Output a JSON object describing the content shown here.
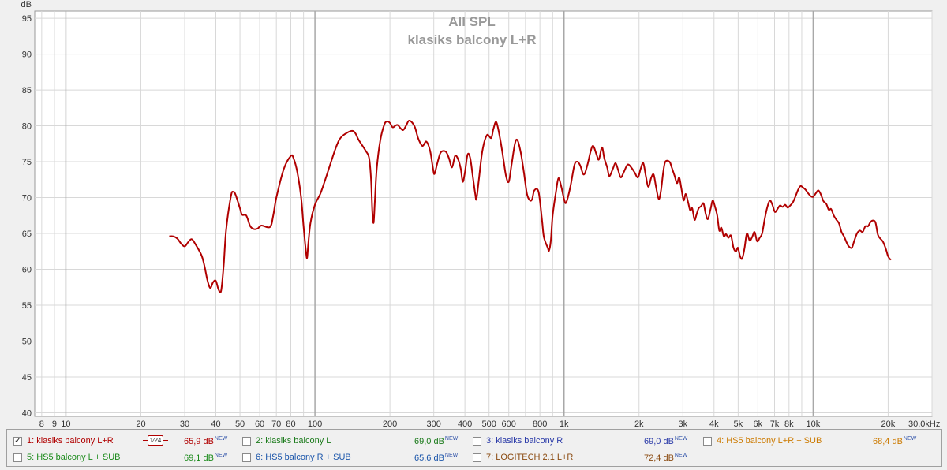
{
  "chart_data": {
    "type": "line",
    "title": "All SPL",
    "subtitle": "klasiks balcony L+R",
    "ylabel": "dB",
    "xunit": "Hz",
    "xscale": "log",
    "xlim": [
      7.5,
      30000
    ],
    "ylim": [
      39.5,
      96
    ],
    "grid": true,
    "yticks": [
      40,
      45,
      50,
      55,
      60,
      65,
      70,
      75,
      80,
      85,
      90,
      95
    ],
    "xticks": [
      {
        "v": 8,
        "label": "8"
      },
      {
        "v": 9,
        "label": "9"
      },
      {
        "v": 10,
        "label": "10"
      },
      {
        "v": 20,
        "label": "20"
      },
      {
        "v": 30,
        "label": "30"
      },
      {
        "v": 40,
        "label": "40"
      },
      {
        "v": 50,
        "label": "50"
      },
      {
        "v": 60,
        "label": "60"
      },
      {
        "v": 70,
        "label": "70"
      },
      {
        "v": 80,
        "label": "80"
      },
      {
        "v": 100,
        "label": "100"
      },
      {
        "v": 200,
        "label": "200"
      },
      {
        "v": 300,
        "label": "300"
      },
      {
        "v": 400,
        "label": "400"
      },
      {
        "v": 500,
        "label": "500"
      },
      {
        "v": 600,
        "label": "600"
      },
      {
        "v": 800,
        "label": "800"
      },
      {
        "v": 1000,
        "label": "1k"
      },
      {
        "v": 2000,
        "label": "2k"
      },
      {
        "v": 3000,
        "label": "3k"
      },
      {
        "v": 4000,
        "label": "4k"
      },
      {
        "v": 5000,
        "label": "5k"
      },
      {
        "v": 6000,
        "label": "6k"
      },
      {
        "v": 7000,
        "label": "7k"
      },
      {
        "v": 8000,
        "label": "8k"
      },
      {
        "v": 10000,
        "label": "10k"
      },
      {
        "v": 20000,
        "label": "20k"
      },
      {
        "v": 30000,
        "label": "30,0kHz"
      }
    ],
    "series": [
      {
        "name": "1: klasiks balcony L+R",
        "color": "#b00000",
        "points": [
          [
            26,
            64.6
          ],
          [
            27,
            64.6
          ],
          [
            28,
            64.3
          ],
          [
            29,
            63.6
          ],
          [
            30,
            63.2
          ],
          [
            31,
            63.8
          ],
          [
            32,
            64.2
          ],
          [
            33,
            63.6
          ],
          [
            35,
            62.0
          ],
          [
            36,
            60.5
          ],
          [
            37,
            58.5
          ],
          [
            38,
            57.4
          ],
          [
            39,
            58.2
          ],
          [
            40,
            58.4
          ],
          [
            41,
            57.2
          ],
          [
            42,
            57.0
          ],
          [
            43,
            60.5
          ],
          [
            44,
            65.5
          ],
          [
            46,
            70.2
          ],
          [
            47,
            70.8
          ],
          [
            48,
            70.4
          ],
          [
            50,
            68.5
          ],
          [
            51,
            67.6
          ],
          [
            53,
            67.5
          ],
          [
            55,
            66.0
          ],
          [
            57,
            65.6
          ],
          [
            59,
            65.7
          ],
          [
            61,
            66.1
          ],
          [
            66,
            65.9
          ],
          [
            68,
            67.5
          ],
          [
            70,
            70.0
          ],
          [
            75,
            74.0
          ],
          [
            80,
            75.8
          ],
          [
            82,
            75.5
          ],
          [
            85,
            73.5
          ],
          [
            88,
            70.0
          ],
          [
            90,
            66.0
          ],
          [
            92,
            62.5
          ],
          [
            93,
            61.6
          ],
          [
            94,
            63.5
          ],
          [
            96,
            66.5
          ],
          [
            100,
            69.0
          ],
          [
            105,
            70.5
          ],
          [
            110,
            72.5
          ],
          [
            120,
            76.5
          ],
          [
            125,
            78.0
          ],
          [
            130,
            78.7
          ],
          [
            140,
            79.3
          ],
          [
            145,
            79.0
          ],
          [
            150,
            78.0
          ],
          [
            160,
            76.5
          ],
          [
            165,
            75.5
          ],
          [
            168,
            72.5
          ],
          [
            170,
            68.0
          ],
          [
            172,
            66.5
          ],
          [
            174,
            69.5
          ],
          [
            177,
            74.0
          ],
          [
            183,
            78.0
          ],
          [
            190,
            80.2
          ],
          [
            195,
            80.6
          ],
          [
            200,
            80.4
          ],
          [
            205,
            79.8
          ],
          [
            210,
            80.0
          ],
          [
            215,
            80.1
          ],
          [
            225,
            79.4
          ],
          [
            232,
            80.0
          ],
          [
            238,
            80.7
          ],
          [
            245,
            80.5
          ],
          [
            252,
            79.8
          ],
          [
            260,
            78.2
          ],
          [
            270,
            77.2
          ],
          [
            280,
            77.8
          ],
          [
            290,
            76.5
          ],
          [
            298,
            74.0
          ],
          [
            302,
            73.3
          ],
          [
            310,
            74.8
          ],
          [
            320,
            76.3
          ],
          [
            335,
            76.4
          ],
          [
            345,
            75.5
          ],
          [
            355,
            74.2
          ],
          [
            365,
            75.8
          ],
          [
            375,
            75.4
          ],
          [
            385,
            74.0
          ],
          [
            392,
            72.2
          ],
          [
            400,
            73.5
          ],
          [
            410,
            76.0
          ],
          [
            420,
            75.5
          ],
          [
            430,
            73.0
          ],
          [
            440,
            70.5
          ],
          [
            445,
            69.8
          ],
          [
            455,
            72.5
          ],
          [
            470,
            76.5
          ],
          [
            490,
            78.7
          ],
          [
            510,
            78.3
          ],
          [
            520,
            79.5
          ],
          [
            535,
            80.5
          ],
          [
            555,
            78.0
          ],
          [
            570,
            75.5
          ],
          [
            585,
            73.0
          ],
          [
            600,
            72.2
          ],
          [
            615,
            74.5
          ],
          [
            635,
            77.5
          ],
          [
            650,
            78.0
          ],
          [
            670,
            76.3
          ],
          [
            690,
            73.5
          ],
          [
            710,
            70.5
          ],
          [
            730,
            69.6
          ],
          [
            745,
            69.8
          ],
          [
            760,
            71.0
          ],
          [
            790,
            70.8
          ],
          [
            815,
            67.0
          ],
          [
            830,
            64.5
          ],
          [
            860,
            63.0
          ],
          [
            870,
            62.6
          ],
          [
            885,
            64.0
          ],
          [
            900,
            67.5
          ],
          [
            930,
            71.0
          ],
          [
            950,
            72.7
          ],
          [
            975,
            71.5
          ],
          [
            1000,
            69.8
          ],
          [
            1020,
            69.3
          ],
          [
            1060,
            71.5
          ],
          [
            1100,
            74.5
          ],
          [
            1130,
            75.0
          ],
          [
            1160,
            74.5
          ],
          [
            1200,
            73.2
          ],
          [
            1240,
            74.5
          ],
          [
            1280,
            76.5
          ],
          [
            1310,
            77.2
          ],
          [
            1350,
            76.0
          ],
          [
            1380,
            75.3
          ],
          [
            1420,
            77.0
          ],
          [
            1450,
            75.5
          ],
          [
            1490,
            74.2
          ],
          [
            1520,
            73.0
          ],
          [
            1570,
            74.0
          ],
          [
            1610,
            74.8
          ],
          [
            1650,
            73.8
          ],
          [
            1690,
            72.8
          ],
          [
            1740,
            73.6
          ],
          [
            1800,
            74.6
          ],
          [
            1860,
            74.2
          ],
          [
            1920,
            73.5
          ],
          [
            1980,
            72.8
          ],
          [
            2030,
            74.0
          ],
          [
            2080,
            74.8
          ],
          [
            2130,
            73.0
          ],
          [
            2180,
            71.5
          ],
          [
            2240,
            72.8
          ],
          [
            2290,
            73.2
          ],
          [
            2340,
            71.5
          ],
          [
            2400,
            69.8
          ],
          [
            2450,
            71.0
          ],
          [
            2500,
            73.5
          ],
          [
            2550,
            75.0
          ],
          [
            2650,
            75.0
          ],
          [
            2700,
            74.3
          ],
          [
            2780,
            73.0
          ],
          [
            2840,
            72.0
          ],
          [
            2900,
            72.8
          ],
          [
            2960,
            71.2
          ],
          [
            3020,
            69.6
          ],
          [
            3080,
            70.5
          ],
          [
            3150,
            69.3
          ],
          [
            3210,
            68.2
          ],
          [
            3270,
            68.5
          ],
          [
            3340,
            66.9
          ],
          [
            3400,
            67.6
          ],
          [
            3470,
            68.5
          ],
          [
            3550,
            68.8
          ],
          [
            3630,
            69.2
          ],
          [
            3700,
            67.8
          ],
          [
            3780,
            67.0
          ],
          [
            3880,
            68.5
          ],
          [
            3950,
            69.6
          ],
          [
            4030,
            68.8
          ],
          [
            4120,
            67.5
          ],
          [
            4200,
            65.4
          ],
          [
            4280,
            65.8
          ],
          [
            4380,
            64.6
          ],
          [
            4470,
            64.9
          ],
          [
            4570,
            64.4
          ],
          [
            4680,
            64.7
          ],
          [
            4790,
            63.0
          ],
          [
            4900,
            62.5
          ],
          [
            4990,
            63.0
          ],
          [
            5090,
            61.8
          ],
          [
            5190,
            61.5
          ],
          [
            5300,
            62.9
          ],
          [
            5420,
            65.0
          ],
          [
            5560,
            64.0
          ],
          [
            5690,
            64.5
          ],
          [
            5820,
            65.2
          ],
          [
            5960,
            63.9
          ],
          [
            6100,
            64.4
          ],
          [
            6240,
            65.0
          ],
          [
            6390,
            67.0
          ],
          [
            6540,
            68.6
          ],
          [
            6700,
            69.6
          ],
          [
            6860,
            69.0
          ],
          [
            7020,
            68.0
          ],
          [
            7190,
            68.4
          ],
          [
            7360,
            68.9
          ],
          [
            7540,
            68.7
          ],
          [
            7720,
            69.0
          ],
          [
            7900,
            68.6
          ],
          [
            8090,
            68.9
          ],
          [
            8280,
            69.3
          ],
          [
            8480,
            70.1
          ],
          [
            8680,
            71.0
          ],
          [
            8890,
            71.6
          ],
          [
            9100,
            71.4
          ],
          [
            9320,
            71.1
          ],
          [
            9550,
            70.6
          ],
          [
            9780,
            70.2
          ],
          [
            10000,
            70.1
          ],
          [
            10250,
            70.6
          ],
          [
            10500,
            71.0
          ],
          [
            10750,
            70.4
          ],
          [
            11000,
            69.5
          ],
          [
            11300,
            69.1
          ],
          [
            11550,
            68.3
          ],
          [
            11800,
            68.4
          ],
          [
            12100,
            67.5
          ],
          [
            12400,
            66.9
          ],
          [
            12700,
            66.4
          ],
          [
            13000,
            65.2
          ],
          [
            13300,
            64.6
          ],
          [
            13600,
            63.8
          ],
          [
            13900,
            63.2
          ],
          [
            14300,
            63.0
          ],
          [
            14600,
            63.9
          ],
          [
            15000,
            65.0
          ],
          [
            15400,
            65.4
          ],
          [
            15800,
            65.2
          ],
          [
            16200,
            66.0
          ],
          [
            16600,
            66.0
          ],
          [
            17000,
            66.6
          ],
          [
            17400,
            66.8
          ],
          [
            17800,
            66.5
          ],
          [
            18200,
            64.8
          ],
          [
            18700,
            64.2
          ],
          [
            19100,
            63.8
          ],
          [
            19600,
            62.8
          ],
          [
            20000,
            61.8
          ],
          [
            20500,
            61.3
          ]
        ]
      }
    ]
  },
  "legend": [
    {
      "label": "1: klasiks balcony L+R",
      "value": "65,9 dB",
      "new": "NEW",
      "checked": true,
      "color": "#b00000",
      "smoothing": "1⁄24"
    },
    {
      "label": "2: klasiks balcony L",
      "value": "69,0 dB",
      "new": "NEW",
      "checked": false,
      "color": "#1a7a1a"
    },
    {
      "label": "3: klasiks balcony R",
      "value": "69,0 dB",
      "new": "NEW",
      "checked": false,
      "color": "#2a3aa8"
    },
    {
      "label": "4: HS5 balcony L+R + SUB",
      "value": "68,4 dB",
      "new": "NEW",
      "checked": false,
      "color": "#cc7a00"
    },
    {
      "label": "5: HS5 balcony  L + SUB",
      "value": "69,1 dB",
      "new": "NEW",
      "checked": false,
      "color": "#1a8a1a"
    },
    {
      "label": "6: HS5 balcony R + SUB",
      "value": "65,6 dB",
      "new": "NEW",
      "checked": false,
      "color": "#1a55aa"
    },
    {
      "label": "7: LOGITECH 2.1 L+R",
      "value": "72,4 dB",
      "new": "NEW",
      "checked": false,
      "color": "#8a4a10"
    }
  ]
}
